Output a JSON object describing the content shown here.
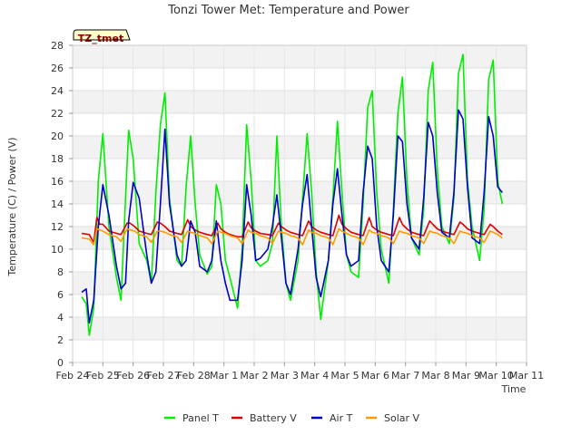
{
  "chart_data": {
    "type": "line",
    "title": "Tonzi Tower Met: Temperature and Power",
    "xlabel": "Time",
    "ylabel": "Temperature (C) / Power (V)",
    "tag": "TZ_tmet",
    "ylim": [
      0,
      28
    ],
    "yticks": [
      0,
      2,
      4,
      6,
      8,
      10,
      12,
      14,
      16,
      18,
      20,
      22,
      24,
      26,
      28
    ],
    "xlim": [
      0,
      15
    ],
    "xticks": [
      0,
      1,
      2,
      3,
      4,
      5,
      6,
      7,
      8,
      9,
      10,
      11,
      12,
      13,
      14,
      15
    ],
    "xtick_labels": [
      "Feb 24",
      "Feb 25",
      "Feb 26",
      "Feb 27",
      "Feb 28",
      "Mar 1",
      "Mar 2",
      "Mar 3",
      "Mar 4",
      "Mar 5",
      "Mar 6",
      "Mar 7",
      "Mar 8",
      "Mar 9",
      "Mar 10",
      "Mar 11"
    ],
    "grid": true,
    "legend_position": "bottom",
    "series": [
      {
        "name": "Panel T",
        "color": "#00ee00",
        "x": [
          0.3,
          0.45,
          0.55,
          0.7,
          0.85,
          1.0,
          1.2,
          1.45,
          1.6,
          1.75,
          1.85,
          2.0,
          2.2,
          2.45,
          2.6,
          2.75,
          2.9,
          3.05,
          3.2,
          3.45,
          3.6,
          3.75,
          3.9,
          4.05,
          4.2,
          4.45,
          4.6,
          4.75,
          4.9,
          5.05,
          5.2,
          5.45,
          5.6,
          5.75,
          5.9,
          6.05,
          6.2,
          6.45,
          6.6,
          6.75,
          6.9,
          7.05,
          7.2,
          7.45,
          7.6,
          7.75,
          7.9,
          8.05,
          8.2,
          8.45,
          8.6,
          8.75,
          8.9,
          9.05,
          9.2,
          9.45,
          9.6,
          9.75,
          9.9,
          10.05,
          10.2,
          10.45,
          10.6,
          10.75,
          10.9,
          11.05,
          11.2,
          11.45,
          11.6,
          11.75,
          11.9,
          12.05,
          12.2,
          12.45,
          12.6,
          12.75,
          12.9,
          13.05,
          13.2,
          13.45,
          13.6,
          13.75,
          13.9,
          14.05,
          14.2
        ],
        "values": [
          5.8,
          5.2,
          2.4,
          4.8,
          16.0,
          20.2,
          12.0,
          7.5,
          5.5,
          14.5,
          20.5,
          18.0,
          10.5,
          9.0,
          7.0,
          15.0,
          21.0,
          23.8,
          14.5,
          9.0,
          8.5,
          15.5,
          20.0,
          14.0,
          9.5,
          7.8,
          8.5,
          15.7,
          14.0,
          9.0,
          7.5,
          4.8,
          10.0,
          21.0,
          16.0,
          9.0,
          8.5,
          9.0,
          10.5,
          20.0,
          12.0,
          7.0,
          5.5,
          9.0,
          14.5,
          20.2,
          15.0,
          8.0,
          3.8,
          9.0,
          14.5,
          21.3,
          15.0,
          9.5,
          8.0,
          7.5,
          14.0,
          22.5,
          24.0,
          15.0,
          10.0,
          7.0,
          13.5,
          22.0,
          25.2,
          16.0,
          11.0,
          9.5,
          13.5,
          24.0,
          26.5,
          17.0,
          12.0,
          10.5,
          14.5,
          25.5,
          27.2,
          16.0,
          12.0,
          9.0,
          13.5,
          25.0,
          26.7,
          16.0,
          14.0
        ]
      },
      {
        "name": "Battery V",
        "color": "#dd0000",
        "x": [
          0.3,
          0.55,
          0.7,
          0.8,
          0.9,
          1.0,
          1.2,
          1.45,
          1.6,
          1.8,
          1.9,
          2.05,
          2.2,
          2.45,
          2.6,
          2.8,
          2.9,
          3.05,
          3.2,
          3.45,
          3.6,
          3.8,
          3.9,
          4.05,
          4.2,
          4.45,
          4.6,
          4.8,
          4.9,
          5.05,
          5.2,
          5.45,
          5.6,
          5.8,
          5.9,
          6.05,
          6.2,
          6.45,
          6.6,
          6.8,
          6.9,
          7.05,
          7.2,
          7.45,
          7.6,
          7.8,
          7.9,
          8.05,
          8.2,
          8.45,
          8.6,
          8.8,
          8.9,
          9.05,
          9.2,
          9.45,
          9.6,
          9.8,
          9.9,
          10.05,
          10.2,
          10.45,
          10.6,
          10.8,
          10.9,
          11.05,
          11.2,
          11.45,
          11.6,
          11.8,
          11.9,
          12.05,
          12.2,
          12.45,
          12.6,
          12.8,
          12.9,
          13.05,
          13.2,
          13.45,
          13.6,
          13.8,
          13.9,
          14.05,
          14.2
        ],
        "values": [
          11.4,
          11.3,
          10.6,
          12.8,
          12.2,
          12.2,
          11.6,
          11.4,
          11.3,
          12.3,
          12.3,
          12.0,
          11.6,
          11.4,
          11.3,
          12.4,
          12.3,
          12.0,
          11.6,
          11.4,
          11.3,
          12.6,
          12.0,
          11.7,
          11.5,
          11.3,
          11.2,
          12.3,
          11.8,
          11.5,
          11.3,
          11.1,
          11.1,
          12.4,
          11.9,
          11.6,
          11.4,
          11.3,
          11.2,
          12.3,
          12.0,
          11.7,
          11.5,
          11.3,
          11.2,
          12.5,
          12.0,
          11.7,
          11.5,
          11.3,
          11.2,
          13.0,
          12.2,
          11.8,
          11.5,
          11.3,
          11.2,
          12.8,
          12.0,
          11.7,
          11.5,
          11.3,
          11.2,
          12.8,
          12.2,
          11.8,
          11.5,
          11.3,
          11.2,
          12.5,
          12.2,
          11.8,
          11.6,
          11.4,
          11.3,
          12.4,
          12.2,
          11.8,
          11.6,
          11.4,
          11.3,
          12.2,
          12.0,
          11.6,
          11.3
        ]
      },
      {
        "name": "Air T",
        "color": "#0000cc",
        "x": [
          0.3,
          0.45,
          0.55,
          0.7,
          0.85,
          1.0,
          1.2,
          1.45,
          1.6,
          1.75,
          1.85,
          2.0,
          2.2,
          2.45,
          2.6,
          2.75,
          2.9,
          3.05,
          3.2,
          3.45,
          3.6,
          3.75,
          3.9,
          4.05,
          4.2,
          4.45,
          4.6,
          4.75,
          4.9,
          5.05,
          5.2,
          5.45,
          5.6,
          5.75,
          5.9,
          6.05,
          6.2,
          6.45,
          6.6,
          6.75,
          6.9,
          7.05,
          7.2,
          7.45,
          7.6,
          7.75,
          7.9,
          8.05,
          8.2,
          8.45,
          8.6,
          8.75,
          8.9,
          9.05,
          9.2,
          9.45,
          9.6,
          9.75,
          9.9,
          10.05,
          10.2,
          10.45,
          10.6,
          10.75,
          10.9,
          11.05,
          11.2,
          11.45,
          11.6,
          11.75,
          11.9,
          12.05,
          12.2,
          12.45,
          12.6,
          12.75,
          12.9,
          13.05,
          13.2,
          13.45,
          13.6,
          13.75,
          13.9,
          14.05,
          14.2
        ],
        "values": [
          6.2,
          6.5,
          3.5,
          5.5,
          12.0,
          15.7,
          13.0,
          8.5,
          6.5,
          7.0,
          12.5,
          15.9,
          14.5,
          9.5,
          7.0,
          8.0,
          14.0,
          20.6,
          14.0,
          9.5,
          8.5,
          9.0,
          12.5,
          11.5,
          8.5,
          8.0,
          9.0,
          12.5,
          9.0,
          7.0,
          5.5,
          5.5,
          9.0,
          15.7,
          13.0,
          9.0,
          9.2,
          10.0,
          12.0,
          14.8,
          11.0,
          7.0,
          6.0,
          10.0,
          14.0,
          16.6,
          12.0,
          7.5,
          5.8,
          9.0,
          14.0,
          17.1,
          13.0,
          9.5,
          8.5,
          9.0,
          15.0,
          19.1,
          18.0,
          12.0,
          9.0,
          8.0,
          13.0,
          20.0,
          19.5,
          14.0,
          11.0,
          10.0,
          14.5,
          21.2,
          20.0,
          15.0,
          11.5,
          11.0,
          15.0,
          22.3,
          21.5,
          15.5,
          11.0,
          10.5,
          15.0,
          21.7,
          20.0,
          15.5,
          15.0
        ]
      },
      {
        "name": "Solar V",
        "color": "#ff9900",
        "x": [
          0.3,
          0.55,
          0.7,
          0.8,
          0.9,
          1.0,
          1.2,
          1.45,
          1.6,
          1.8,
          1.9,
          2.05,
          2.2,
          2.45,
          2.6,
          2.8,
          2.9,
          3.05,
          3.2,
          3.45,
          3.6,
          3.8,
          3.9,
          4.05,
          4.2,
          4.45,
          4.6,
          4.8,
          4.9,
          5.05,
          5.2,
          5.45,
          5.6,
          5.8,
          5.9,
          6.05,
          6.2,
          6.45,
          6.6,
          6.8,
          6.9,
          7.05,
          7.2,
          7.45,
          7.6,
          7.8,
          7.9,
          8.05,
          8.2,
          8.45,
          8.6,
          8.8,
          8.9,
          9.05,
          9.2,
          9.45,
          9.6,
          9.8,
          9.9,
          10.05,
          10.2,
          10.45,
          10.6,
          10.8,
          10.9,
          11.05,
          11.2,
          11.45,
          11.6,
          11.8,
          11.9,
          12.05,
          12.2,
          12.45,
          12.6,
          12.8,
          12.9,
          13.05,
          13.2,
          13.45,
          13.6,
          13.8,
          13.9,
          14.05,
          14.2
        ],
        "values": [
          11.0,
          10.9,
          10.4,
          11.8,
          11.7,
          11.6,
          11.3,
          11.1,
          10.7,
          11.8,
          11.7,
          11.6,
          11.3,
          11.1,
          10.6,
          11.6,
          11.6,
          11.5,
          11.3,
          11.1,
          10.6,
          11.6,
          11.5,
          11.4,
          11.2,
          11.0,
          10.5,
          11.6,
          11.5,
          11.4,
          11.2,
          11.0,
          10.5,
          11.7,
          11.5,
          11.4,
          11.2,
          11.0,
          10.5,
          11.6,
          11.5,
          11.4,
          11.2,
          11.0,
          10.4,
          11.7,
          11.5,
          11.4,
          11.2,
          11.0,
          10.4,
          11.8,
          11.6,
          11.4,
          11.2,
          11.0,
          10.4,
          11.7,
          11.5,
          11.4,
          11.2,
          11.0,
          10.5,
          11.6,
          11.5,
          11.4,
          11.2,
          11.0,
          10.5,
          11.6,
          11.5,
          11.4,
          11.2,
          11.0,
          10.5,
          11.6,
          11.5,
          11.4,
          11.2,
          11.0,
          10.6,
          11.6,
          11.5,
          11.3,
          11.0
        ]
      }
    ]
  }
}
